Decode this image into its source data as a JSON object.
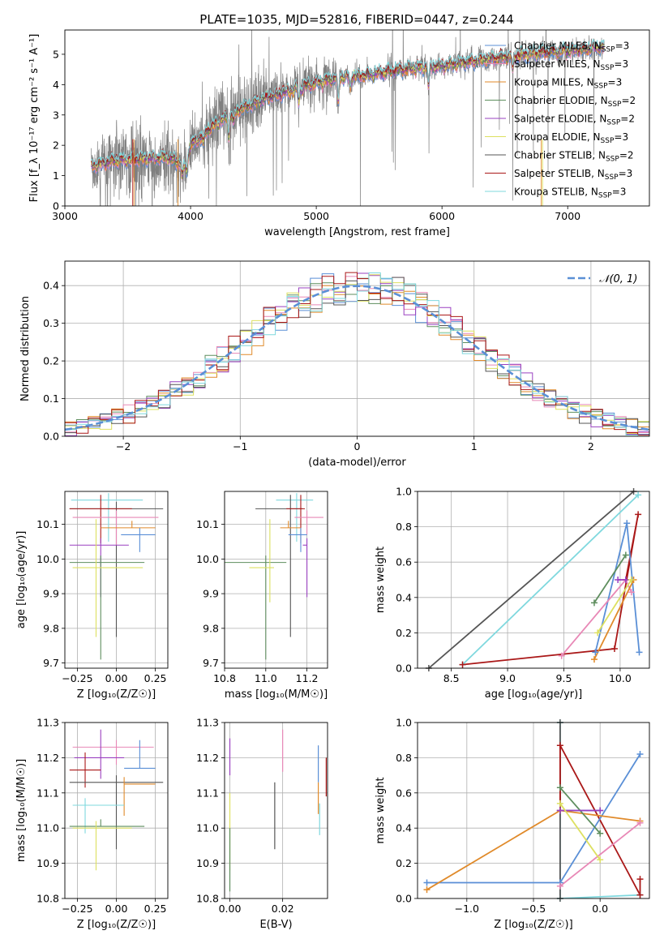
{
  "figure": {
    "title": "PLATE=1035, MJD=52816, FIBERID=0447, z=0.244"
  },
  "colors": {
    "Chabrier MILES": "#5a8fd6",
    "Salpeter MILES": "#e888b6",
    "Kroupa MILES": "#e08a2a",
    "Chabrier ELODIE": "#5e8e5e",
    "Salpeter ELODIE": "#9a40c0",
    "Kroupa ELODIE": "#dde060",
    "Chabrier STELIB": "#555555",
    "Salpeter STELIB": "#aa1818",
    "Kroupa STELIB": "#7fd8de",
    "data": "#7f7f7f"
  },
  "chart_data": [
    {
      "id": "spectrum",
      "type": "line",
      "xlabel": "wavelength [Angstrom, rest frame]",
      "ylabel": "Flux [f_λ 10⁻¹⁷ erg cm⁻² s⁻¹ A⁻¹]",
      "xlim": [
        3000,
        7650
      ],
      "ylim": [
        0,
        5.8
      ],
      "xticks": [
        3000,
        4000,
        5000,
        6000,
        7000
      ],
      "yticks": [
        0,
        1,
        2,
        3,
        4,
        5
      ],
      "grid": false,
      "legend_position": "top-right",
      "legend": [
        {
          "label": "Chabrier MILES, N",
          "sub": "SSP",
          "tail": "=3",
          "key": "Chabrier MILES"
        },
        {
          "label": "Salpeter MILES, N",
          "sub": "SSP",
          "tail": "=3",
          "key": "Salpeter MILES"
        },
        {
          "label": "Kroupa MILES, N",
          "sub": "SSP",
          "tail": "=3",
          "key": "Kroupa MILES"
        },
        {
          "label": "Chabrier ELODIE, N",
          "sub": "SSP",
          "tail": "=2",
          "key": "Chabrier ELODIE"
        },
        {
          "label": "Salpeter ELODIE, N",
          "sub": "SSP",
          "tail": "=2",
          "key": "Salpeter ELODIE"
        },
        {
          "label": "Kroupa ELODIE, N",
          "sub": "SSP",
          "tail": "=3",
          "key": "Kroupa ELODIE"
        },
        {
          "label": "Chabrier STELIB, N",
          "sub": "SSP",
          "tail": "=2",
          "key": "Chabrier STELIB"
        },
        {
          "label": "Salpeter STELIB, N",
          "sub": "SSP",
          "tail": "=3",
          "key": "Salpeter STELIB"
        },
        {
          "label": "Kroupa STELIB, N",
          "sub": "SSP",
          "tail": "=3",
          "key": "Kroupa STELIB"
        }
      ],
      "model_continuum": [
        [
          3210,
          1.3
        ],
        [
          3400,
          1.5
        ],
        [
          3600,
          1.55
        ],
        [
          3800,
          1.6
        ],
        [
          3900,
          1.45
        ],
        [
          3950,
          1.3
        ],
        [
          4000,
          2.0
        ],
        [
          4200,
          2.7
        ],
        [
          4400,
          3.2
        ],
        [
          4600,
          3.55
        ],
        [
          4800,
          3.8
        ],
        [
          5000,
          4.05
        ],
        [
          5200,
          4.25
        ],
        [
          5400,
          4.3
        ],
        [
          5600,
          4.45
        ],
        [
          5800,
          4.55
        ],
        [
          6000,
          4.6
        ],
        [
          6200,
          4.75
        ],
        [
          6400,
          4.85
        ],
        [
          6600,
          4.95
        ],
        [
          6800,
          5.05
        ],
        [
          7000,
          5.1
        ],
        [
          7200,
          5.2
        ],
        [
          7280,
          5.25
        ]
      ],
      "series_names": [
        "Chabrier MILES",
        "Salpeter MILES",
        "Kroupa MILES",
        "Chabrier ELODIE",
        "Salpeter ELODIE",
        "Kroupa ELODIE",
        "Chabrier STELIB",
        "Salpeter STELIB",
        "Kroupa STELIB"
      ]
    },
    {
      "id": "residuals",
      "type": "area",
      "xlabel": "(data-model)/error",
      "ylabel": "Normed distribution",
      "xlim": [
        -2.5,
        2.5
      ],
      "ylim": [
        0,
        0.465
      ],
      "xticks": [
        -2,
        -1,
        0,
        1,
        2
      ],
      "yticks": [
        0.0,
        0.1,
        0.2,
        0.3,
        0.4
      ],
      "grid": true,
      "legend_position": "top-right",
      "legend_label": "𝒩(0, 1)",
      "bin_width": 0.1,
      "reference": {
        "name": "𝒩(0, 1)",
        "mean": 0,
        "sigma": 1,
        "color": "#5a8fd6"
      }
    },
    {
      "id": "age_vs_Z",
      "type": "scatter",
      "xlabel": "Z [log₁₀(Z/Z☉)]",
      "ylabel": "age  [log₁₀(age/yr)]",
      "xlim": [
        -0.33,
        0.33
      ],
      "ylim": [
        9.685,
        10.195
      ],
      "xticks": [
        -0.25,
        0.0,
        0.25
      ],
      "xticklabels": [
        "−0.25",
        "0.00",
        "0.25"
      ],
      "yticks": [
        9.7,
        9.8,
        9.9,
        10.0,
        10.1
      ],
      "grid": true,
      "errorbars": [
        {
          "model": "Kroupa STELIB",
          "x": -0.05,
          "xerr": [
            0.24,
            0.22
          ],
          "y": 10.17,
          "yerr": [
            0.12,
            0.0
          ]
        },
        {
          "model": "Chabrier STELIB",
          "x": 0.0,
          "xerr": [
            0.3,
            0.3
          ],
          "y": 10.145,
          "yerr": [
            0.37,
            0.0
          ]
        },
        {
          "model": "Salpeter STELIB",
          "x": -0.1,
          "xerr": [
            0.2,
            0.2
          ],
          "y": 10.145,
          "yerr": [
            0.1,
            0.02
          ]
        },
        {
          "model": "Salpeter MILES",
          "x": 0.0,
          "xerr": [
            0.28,
            0.27
          ],
          "y": 10.12,
          "yerr": [
            0.08,
            0.0
          ]
        },
        {
          "model": "Kroupa MILES",
          "x": 0.1,
          "xerr": [
            0.2,
            0.15
          ],
          "y": 10.09,
          "yerr": [
            0.0,
            0.0
          ]
        },
        {
          "model": "Chabrier MILES",
          "x": 0.15,
          "xerr": [
            0.12,
            0.1
          ],
          "y": 10.07,
          "yerr": [
            0.05,
            0.0
          ]
        },
        {
          "model": "Salpeter ELODIE",
          "x": -0.1,
          "xerr": [
            0.2,
            0.18
          ],
          "y": 10.04,
          "yerr": [
            0.15,
            0.0
          ]
        },
        {
          "model": "Chabrier ELODIE",
          "x": -0.1,
          "xerr": [
            0.2,
            0.28
          ],
          "y": 9.99,
          "yerr": [
            0.28,
            0.0
          ]
        },
        {
          "model": "Kroupa ELODIE",
          "x": -0.13,
          "xerr": [
            0.15,
            0.3
          ],
          "y": 9.975,
          "yerr": [
            0.2,
            0.12
          ]
        }
      ]
    },
    {
      "id": "age_vs_mass",
      "type": "scatter",
      "xlabel": "mass [log₁₀(M/M☉)]",
      "ylabel": "",
      "xlim": [
        10.8,
        11.3
      ],
      "ylim": [
        9.685,
        10.195
      ],
      "xticks": [
        10.8,
        11.0,
        11.2
      ],
      "yticks": [
        9.7,
        9.8,
        9.9,
        10.0,
        10.1
      ],
      "grid": true,
      "errorbars": [
        {
          "model": "Kroupa STELIB",
          "x": 11.15,
          "xerr": [
            0.1,
            0.08
          ],
          "y": 10.17,
          "yerr": [
            0.12,
            0.0
          ]
        },
        {
          "model": "Chabrier STELIB",
          "x": 11.12,
          "xerr": [
            0.17,
            0.06
          ],
          "y": 10.145,
          "yerr": [
            0.37,
            0.02
          ]
        },
        {
          "model": "Salpeter STELIB",
          "x": 11.17,
          "xerr": [
            0.07,
            0.02
          ],
          "y": 10.145,
          "yerr": [
            0.1,
            0.02
          ]
        },
        {
          "model": "Salpeter MILES",
          "x": 11.2,
          "xerr": [
            0.06,
            0.08
          ],
          "y": 10.12,
          "yerr": [
            0.05,
            0.0
          ]
        },
        {
          "model": "Kroupa MILES",
          "x": 11.11,
          "xerr": [
            0.04,
            0.06
          ],
          "y": 10.09,
          "yerr": [
            0.0,
            0.0
          ]
        },
        {
          "model": "Chabrier MILES",
          "x": 11.17,
          "xerr": [
            0.06,
            0.03
          ],
          "y": 10.07,
          "yerr": [
            0.05,
            0.0
          ]
        },
        {
          "model": "Salpeter ELODIE",
          "x": 11.2,
          "xerr": [
            0.02,
            0.0
          ],
          "y": 10.04,
          "yerr": [
            0.15,
            0.0
          ]
        },
        {
          "model": "Chabrier ELODIE",
          "x": 11.0,
          "xerr": [
            0.2,
            0.1
          ],
          "y": 9.99,
          "yerr": [
            0.28,
            0.0
          ]
        },
        {
          "model": "Kroupa ELODIE",
          "x": 11.02,
          "xerr": [
            0.1,
            0.02
          ],
          "y": 9.975,
          "yerr": [
            0.1,
            0.12
          ]
        }
      ]
    },
    {
      "id": "weight_vs_age",
      "type": "line",
      "xlabel": "age  [log₁₀(age/yr)]",
      "ylabel": "mass weight",
      "xlim": [
        8.2,
        10.26
      ],
      "ylim": [
        0.0,
        1.0
      ],
      "xticks": [
        8.5,
        9.0,
        9.5,
        10.0
      ],
      "yticks": [
        0.0,
        0.2,
        0.4,
        0.6,
        0.8,
        1.0
      ],
      "grid": true,
      "series": [
        {
          "name": "Chabrier STELIB",
          "x": [
            8.3,
            10.12
          ],
          "y": [
            0.0,
            1.0
          ]
        },
        {
          "name": "Kroupa STELIB",
          "x": [
            8.6,
            10.16
          ],
          "y": [
            0.02,
            0.98
          ]
        },
        {
          "name": "Salpeter STELIB",
          "x": [
            8.6,
            9.95,
            10.16,
            10.05
          ],
          "y": [
            0.02,
            0.11,
            0.87,
            0.5
          ]
        },
        {
          "name": "Chabrier MILES",
          "x": [
            9.78,
            10.06,
            10.17
          ],
          "y": [
            0.09,
            0.82,
            0.09
          ]
        },
        {
          "name": "Salpeter MILES",
          "x": [
            9.48,
            10.05,
            10.1
          ],
          "y": [
            0.07,
            0.5,
            0.43
          ]
        },
        {
          "name": "Kroupa MILES",
          "x": [
            9.77,
            10.12
          ],
          "y": [
            0.05,
            0.5
          ]
        },
        {
          "name": "Chabrier ELODIE",
          "x": [
            9.77,
            10.05
          ],
          "y": [
            0.37,
            0.64
          ]
        },
        {
          "name": "Salpeter ELODIE",
          "x": [
            9.98,
            10.05
          ],
          "y": [
            0.5,
            0.5
          ]
        },
        {
          "name": "Kroupa ELODIE",
          "x": [
            9.8,
            10.1
          ],
          "y": [
            0.2,
            0.5
          ]
        }
      ]
    },
    {
      "id": "mass_vs_Z",
      "type": "scatter",
      "xlabel": "Z [log₁₀(Z/Z☉)]",
      "ylabel": "mass [log₁₀(M/M☉)]",
      "xlim": [
        -0.33,
        0.33
      ],
      "ylim": [
        10.8,
        11.3
      ],
      "xticks": [
        -0.25,
        0.0,
        0.25
      ],
      "xticklabels": [
        "−0.25",
        "0.00",
        "0.25"
      ],
      "yticks": [
        10.8,
        10.9,
        11.0,
        11.1,
        11.2,
        11.3
      ],
      "grid": true,
      "errorbars": [
        {
          "model": "Salpeter MILES",
          "x": 0.0,
          "xerr": [
            0.28,
            0.24
          ],
          "y": 11.23,
          "yerr": [
            0.05,
            0.0
          ]
        },
        {
          "model": "Salpeter ELODIE",
          "x": -0.1,
          "xerr": [
            0.17,
            0.15
          ],
          "y": 11.2,
          "yerr": [
            0.06,
            0.06
          ]
        },
        {
          "model": "Chabrier MILES",
          "x": 0.15,
          "xerr": [
            0.1,
            0.1
          ],
          "y": 11.17,
          "yerr": [
            0.0,
            0.06
          ]
        },
        {
          "model": "Salpeter STELIB",
          "x": -0.2,
          "xerr": [
            0.1,
            0.1
          ],
          "y": 11.165,
          "yerr": [
            0.05,
            0.03
          ]
        },
        {
          "model": "Chabrier STELIB",
          "x": 0.0,
          "xerr": [
            0.3,
            0.3
          ],
          "y": 11.13,
          "yerr": [
            0.19,
            0.0
          ]
        },
        {
          "model": "Kroupa MILES",
          "x": 0.05,
          "xerr": [
            0.0,
            0.2
          ],
          "y": 11.125,
          "yerr": [
            0.09,
            0.0
          ]
        },
        {
          "model": "Kroupa STELIB",
          "x": -0.2,
          "xerr": [
            0.08,
            0.25
          ],
          "y": 11.065,
          "yerr": [
            0.08,
            0.0
          ]
        },
        {
          "model": "Chabrier ELODIE",
          "x": -0.1,
          "xerr": [
            0.2,
            0.28
          ],
          "y": 11.005,
          "yerr": [
            0.0,
            0.0
          ]
        },
        {
          "model": "Kroupa ELODIE",
          "x": -0.13,
          "xerr": [
            0.15,
            0.23
          ],
          "y": 11.0,
          "yerr": [
            0.12,
            0.0
          ]
        }
      ]
    },
    {
      "id": "mass_vs_ebv",
      "type": "scatter",
      "xlabel": "E(B-V)",
      "ylabel": "",
      "xlim": [
        -0.002,
        0.037
      ],
      "ylim": [
        10.8,
        11.3
      ],
      "xticks": [
        0.0,
        0.02
      ],
      "xticklabels": [
        "0.00",
        "0.02"
      ],
      "yticks": [
        10.8,
        10.9,
        11.0,
        11.1,
        11.2,
        11.3
      ],
      "grid": true,
      "vertical_bars": [
        {
          "model": "Salpeter ELODIE",
          "x": 0.0,
          "y0": 11.15,
          "y1": 11.255
        },
        {
          "model": "Kroupa ELODIE",
          "x": 0.0,
          "y0": 10.88,
          "y1": 11.1
        },
        {
          "model": "Chabrier ELODIE",
          "x": 0.0,
          "y0": 10.82,
          "y1": 11.0
        },
        {
          "model": "Salpeter MILES",
          "x": 0.02,
          "y0": 11.16,
          "y1": 11.28
        },
        {
          "model": "Chabrier STELIB",
          "x": 0.017,
          "y0": 10.94,
          "y1": 11.13
        },
        {
          "model": "Chabrier MILES",
          "x": 0.0335,
          "y0": 11.13,
          "y1": 11.235
        },
        {
          "model": "Kroupa MILES",
          "x": 0.0335,
          "y0": 11.04,
          "y1": 11.13
        },
        {
          "model": "Kroupa STELIB",
          "x": 0.034,
          "y0": 10.98,
          "y1": 11.07
        },
        {
          "model": "Salpeter STELIB",
          "x": 0.0365,
          "y0": 11.09,
          "y1": 11.2
        }
      ]
    },
    {
      "id": "weight_vs_Z",
      "type": "line",
      "xlabel": "Z [log₁₀(Z/Z☉)]",
      "ylabel": "mass weight",
      "xlim": [
        -1.37,
        0.37
      ],
      "ylim": [
        0.0,
        1.0
      ],
      "xticks": [
        -1.0,
        -0.5,
        0.0
      ],
      "xticklabels": [
        "−1.0",
        "−0.5",
        "0.0"
      ],
      "yticks": [
        0.0,
        0.2,
        0.4,
        0.6,
        0.8,
        1.0
      ],
      "grid": true,
      "series": [
        {
          "name": "Kroupa STELIB",
          "x": [
            -0.3,
            -0.3,
            0.3
          ],
          "y": [
            1.0,
            0.0,
            0.02
          ]
        },
        {
          "name": "Chabrier STELIB",
          "x": [
            -0.3,
            -0.3
          ],
          "y": [
            0.0,
            1.0
          ]
        },
        {
          "name": "Salpeter STELIB",
          "x": [
            -0.3,
            -0.3,
            0.3,
            0.3
          ],
          "y": [
            0.5,
            0.87,
            0.02,
            0.11
          ]
        },
        {
          "name": "Chabrier MILES",
          "x": [
            -1.3,
            -0.3,
            0.3
          ],
          "y": [
            0.09,
            0.09,
            0.82
          ]
        },
        {
          "name": "Chabrier MILES",
          "x": [
            -0.3,
            0.0
          ],
          "y": [
            0.5,
            0.5
          ]
        },
        {
          "name": "Kroupa MILES",
          "x": [
            -1.3,
            -0.3,
            0.3
          ],
          "y": [
            0.05,
            0.5,
            0.44
          ]
        },
        {
          "name": "Salpeter MILES",
          "x": [
            -0.3,
            0.3
          ],
          "y": [
            0.07,
            0.43
          ]
        },
        {
          "name": "Chabrier ELODIE",
          "x": [
            -0.3,
            0.0
          ],
          "y": [
            0.63,
            0.37
          ]
        },
        {
          "name": "Salpeter ELODIE",
          "x": [
            -0.3,
            0.0
          ],
          "y": [
            0.5,
            0.5
          ]
        },
        {
          "name": "Kroupa ELODIE",
          "x": [
            -0.3,
            0.0
          ],
          "y": [
            0.54,
            0.22
          ]
        }
      ]
    }
  ]
}
